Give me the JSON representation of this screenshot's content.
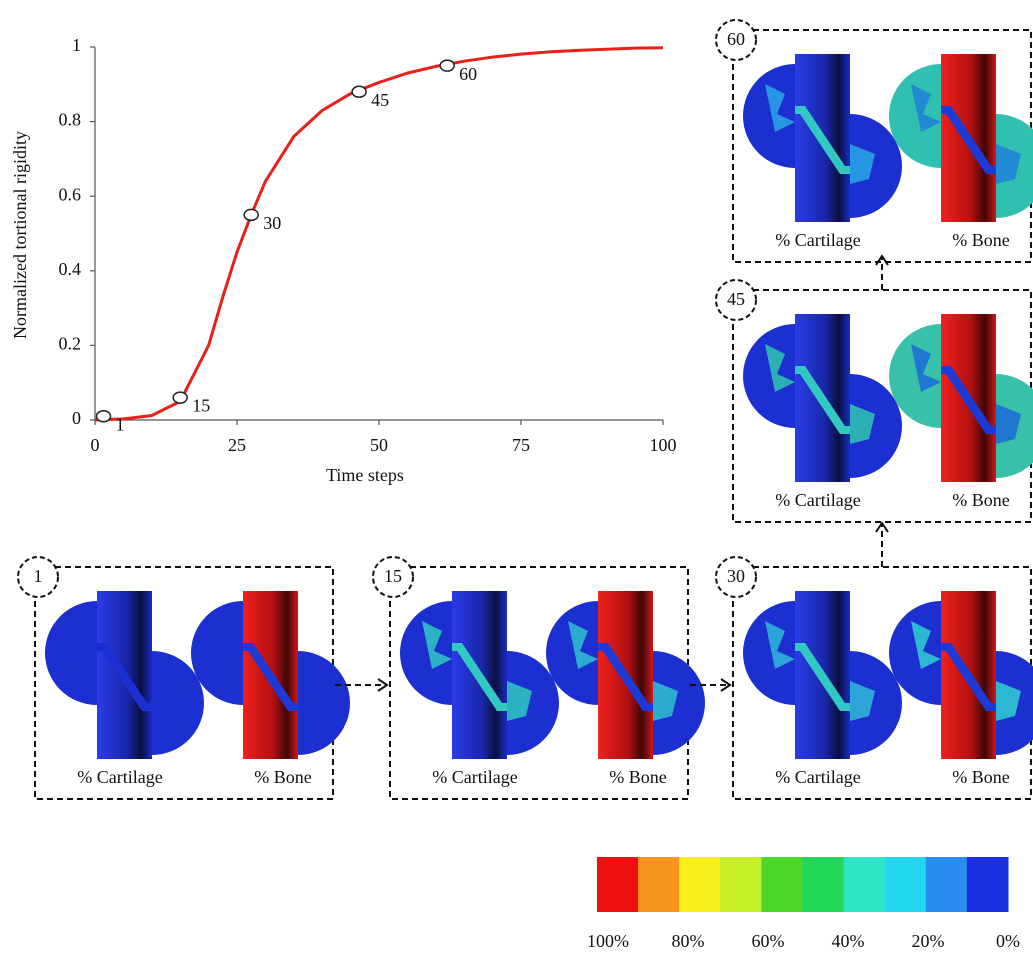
{
  "chart_data": {
    "type": "line",
    "xlabel": "Time steps",
    "ylabel": "Normalized tortional rigidity",
    "x": [
      0,
      5,
      10,
      15,
      20,
      22.5,
      25,
      27.5,
      30,
      35,
      40,
      45,
      50,
      55,
      60,
      65,
      70,
      75,
      80,
      85,
      90,
      95,
      100
    ],
    "values": [
      0,
      0.003,
      0.012,
      0.05,
      0.2,
      0.33,
      0.45,
      0.55,
      0.64,
      0.76,
      0.83,
      0.875,
      0.905,
      0.93,
      0.948,
      0.962,
      0.973,
      0.981,
      0.987,
      0.991,
      0.994,
      0.997,
      0.998
    ],
    "color": "#e8201a",
    "xlim": [
      0,
      100
    ],
    "xticks": [
      0,
      25,
      50,
      75,
      100
    ],
    "ylim": [
      0,
      1
    ],
    "yticks": [
      0,
      0.2,
      0.4,
      0.6,
      0.8,
      1
    ],
    "markers": {
      "x": [
        1.5,
        15,
        27.5,
        46.5,
        62
      ],
      "y": [
        0.01,
        0.06,
        0.55,
        0.88,
        0.95
      ],
      "labels": [
        "1",
        "15",
        "30",
        "45",
        "60"
      ]
    }
  },
  "panels": [
    {
      "step": "1",
      "labels": [
        "% Cartilage",
        "% Bone"
      ]
    },
    {
      "step": "15",
      "labels": [
        "% Cartilage",
        "% Bone"
      ]
    },
    {
      "step": "30",
      "labels": [
        "% Cartilage",
        "% Bone"
      ]
    },
    {
      "step": "45",
      "labels": [
        "% Cartilage",
        "% Bone"
      ]
    },
    {
      "step": "60",
      "labels": [
        "% Cartilage",
        "% Bone"
      ]
    }
  ],
  "colorbar": {
    "colors": [
      "#ee1010",
      "#f7961c",
      "#f8ef1e",
      "#c6ef2a",
      "#4fd62a",
      "#22d65a",
      "#2ee6c6",
      "#22d6f0",
      "#2a8cf0",
      "#1a2fe0"
    ],
    "labels": [
      "100%",
      "80%",
      "60%",
      "40%",
      "20%",
      "0%"
    ]
  }
}
